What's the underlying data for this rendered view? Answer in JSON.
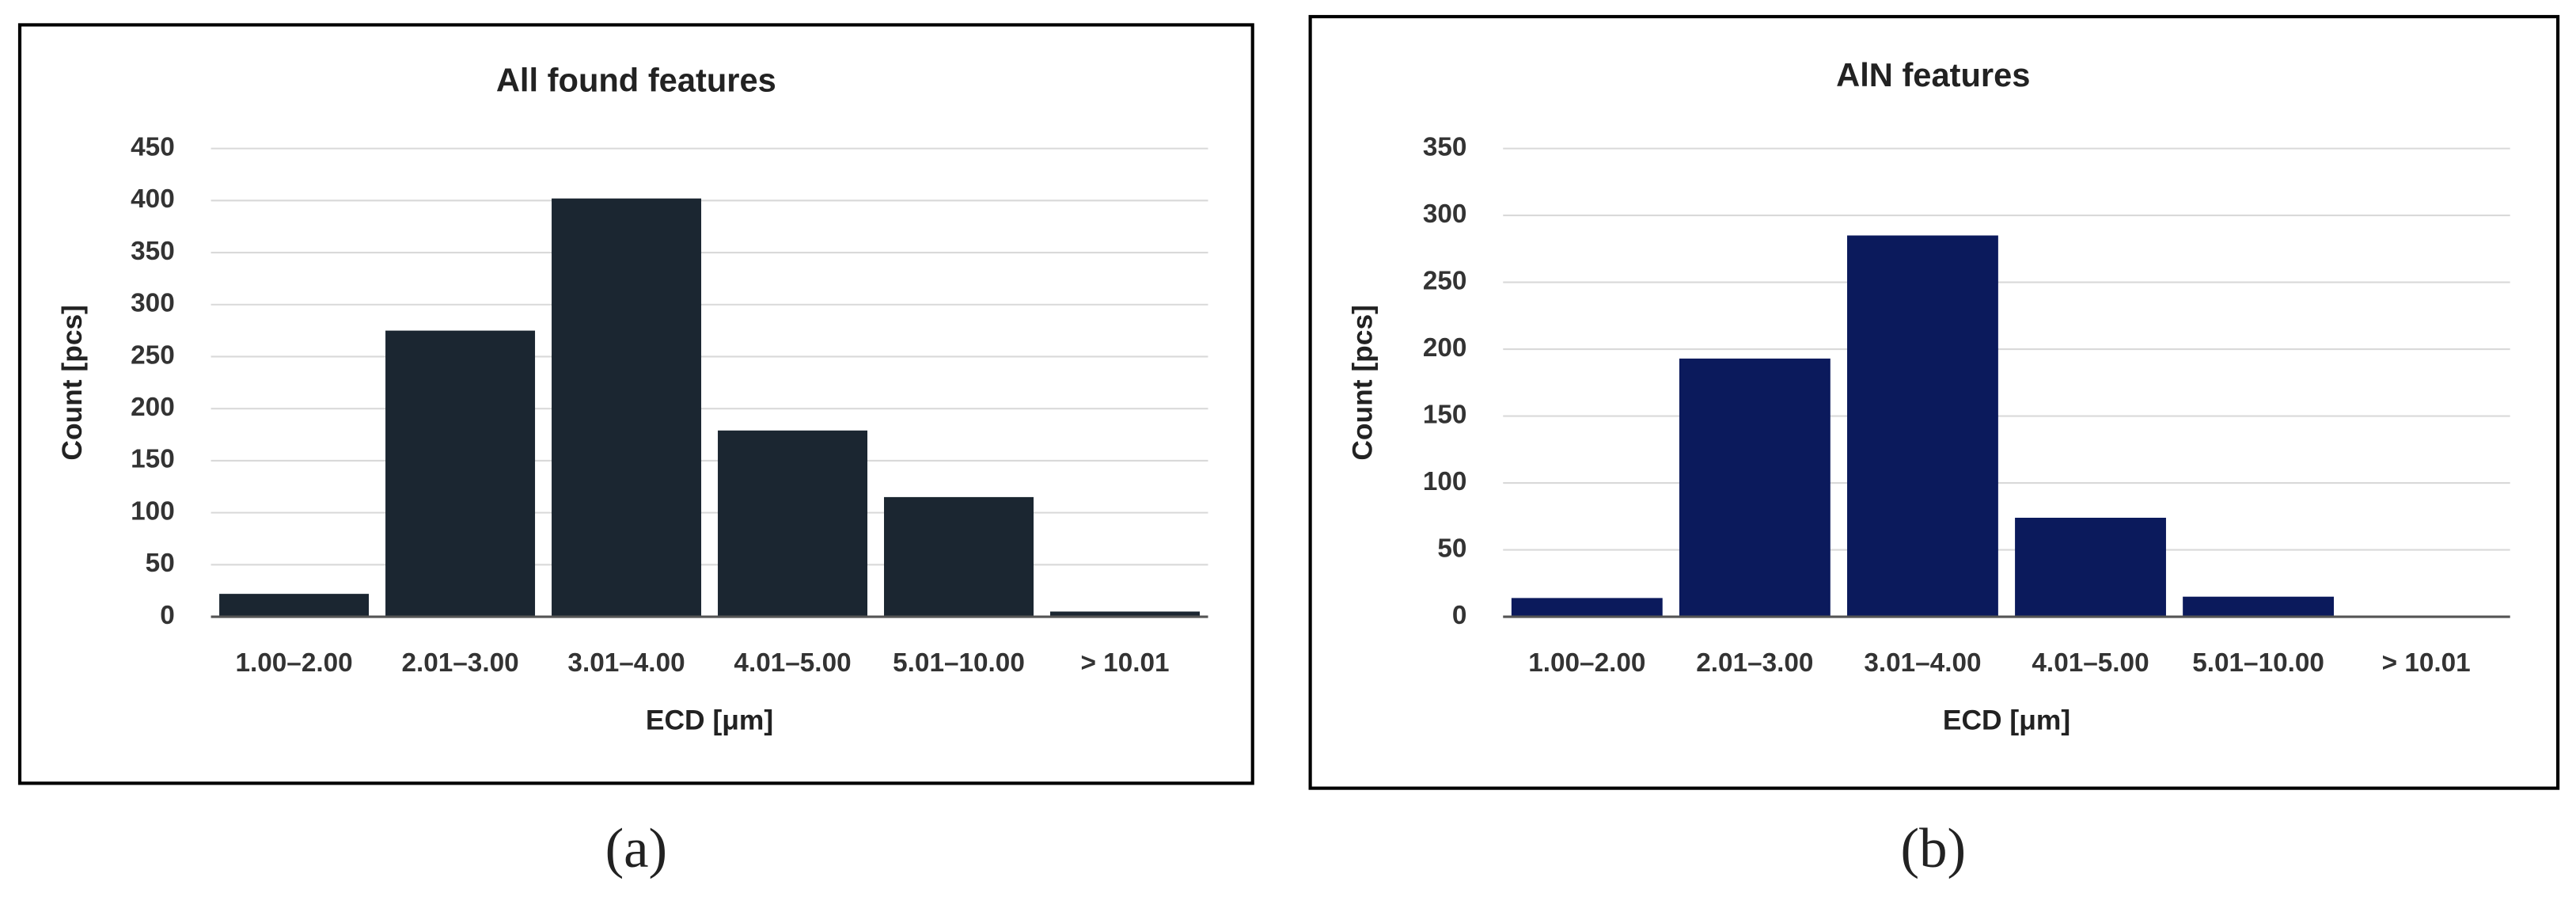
{
  "chart_data": [
    {
      "type": "bar",
      "title": "All found features",
      "label": "(a)",
      "categories": [
        "1.00–2.00",
        "2.01–3.00",
        "3.01–4.00",
        "4.01–5.00",
        "5.01–10.00",
        "> 10.01"
      ],
      "values": [
        22,
        275,
        402,
        179,
        115,
        5
      ],
      "color": "#1b2631",
      "x_label": "ECD [μm]",
      "y_label": "Count  [pcs]",
      "ylim": [
        0,
        450
      ],
      "yticks": [
        0,
        50,
        100,
        150,
        200,
        250,
        300,
        350,
        400,
        450
      ],
      "grid": true
    },
    {
      "type": "bar",
      "title": "AlN features",
      "label": "(b)",
      "categories": [
        "1.00–2.00",
        "2.01–3.00",
        "3.01–4.00",
        "4.01–5.00",
        "5.01–10.00",
        "> 10.01"
      ],
      "values": [
        14,
        193,
        285,
        74,
        15,
        0
      ],
      "color": "#0b1a5c",
      "x_label": "ECD [μm]",
      "y_label": "Count  [pcs]",
      "ylim": [
        0,
        350
      ],
      "yticks": [
        0,
        50,
        100,
        150,
        200,
        250,
        300,
        350
      ],
      "grid": true
    }
  ]
}
